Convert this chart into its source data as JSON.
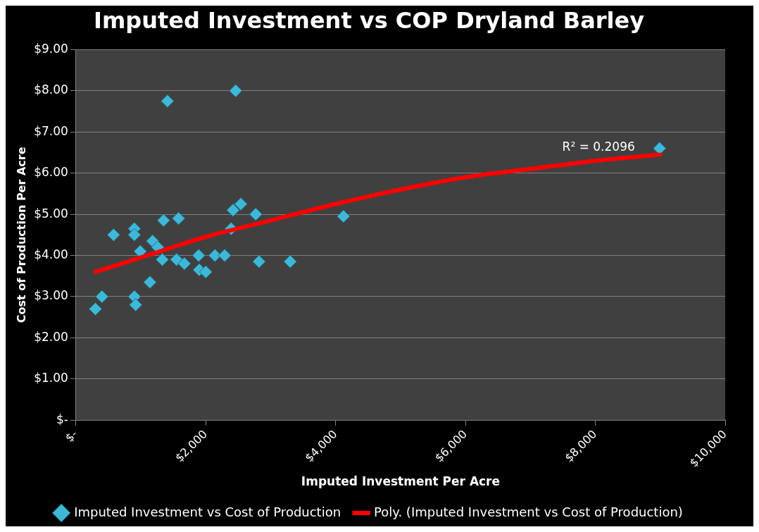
{
  "chart_data": {
    "type": "scatter",
    "title": "Imputed Investment vs COP Dryland Barley",
    "xlabel": "Imputed Investment Per Acre",
    "ylabel": "Cost of Production Per Acre",
    "annotations": [
      {
        "text": "R² = 0.2096",
        "x": 8050,
        "y": 6.35
      }
    ],
    "series": [
      {
        "name": "Imputed Investment vs Cost of Production",
        "type": "scatter",
        "marker": "diamond",
        "color": "#3fb8d8",
        "x": [
          300,
          400,
          580,
          900,
          900,
          900,
          920,
          990,
          1140,
          1180,
          1260,
          1330,
          1350,
          1410,
          1580,
          1550,
          1670,
          1890,
          1900,
          2000,
          2140,
          2290,
          2390,
          2420,
          2540,
          2460,
          2770,
          2820,
          3300,
          4120,
          8990
        ],
        "values": [
          2.7,
          3.0,
          4.5,
          4.65,
          4.5,
          3.0,
          2.8,
          4.1,
          3.35,
          4.35,
          4.2,
          3.9,
          4.85,
          7.75,
          4.9,
          3.9,
          3.8,
          4.0,
          3.65,
          3.6,
          4.0,
          4.0,
          4.65,
          5.1,
          5.25,
          8.0,
          5.0,
          3.85,
          3.85,
          4.95,
          6.6
        ]
      },
      {
        "name": "Poly. (Imputed Investment vs Cost of Production)",
        "type": "line",
        "marker": "none",
        "color": "#ff0000",
        "x": [
          300,
          1000,
          2000,
          3000,
          4000,
          5000,
          6000,
          7000,
          8000,
          9000
        ],
        "values": [
          3.6,
          3.95,
          4.45,
          4.85,
          5.25,
          5.6,
          5.9,
          6.1,
          6.3,
          6.45
        ]
      }
    ],
    "xlim": [
      0,
      10000
    ],
    "xticks": [
      {
        "value": 0,
        "label": "$-"
      },
      {
        "value": 2000,
        "label": "$2,000"
      },
      {
        "value": 4000,
        "label": "$4,000"
      },
      {
        "value": 6000,
        "label": "$6,000"
      },
      {
        "value": 8000,
        "label": "$8,000"
      },
      {
        "value": 10000,
        "label": "$10,000"
      }
    ],
    "ylim": [
      0,
      9
    ],
    "yticks": [
      {
        "value": 0,
        "label": "$-"
      },
      {
        "value": 1,
        "label": "$1.00"
      },
      {
        "value": 2,
        "label": "$2.00"
      },
      {
        "value": 3,
        "label": "$3.00"
      },
      {
        "value": 4,
        "label": "$4.00"
      },
      {
        "value": 5,
        "label": "$5.00"
      },
      {
        "value": 6,
        "label": "$6.00"
      },
      {
        "value": 7,
        "label": "$7.00"
      },
      {
        "value": 8,
        "label": "$8.00"
      },
      {
        "value": 9,
        "label": "$9.00"
      }
    ],
    "grid": "y",
    "legend": "bottom"
  }
}
